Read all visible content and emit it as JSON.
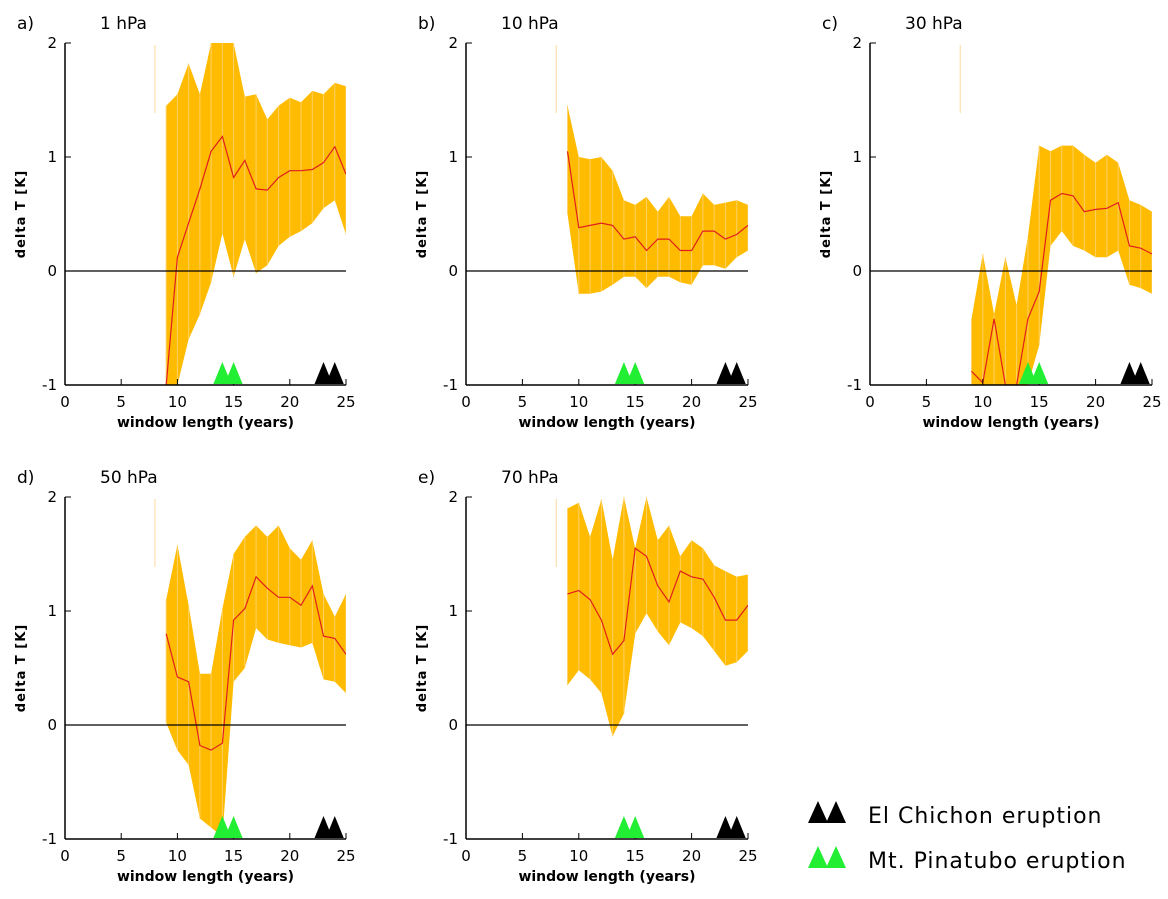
{
  "colors": {
    "band": "#ffbb00",
    "band_stripe": "#ffd166",
    "line": "#e01e1e",
    "zero": "#000000",
    "el_chichon": "#000000",
    "pinatubo": "#22ee33",
    "faint": "#ffd9a0"
  },
  "legend": {
    "el_chichon_label": "El Chichon eruption",
    "pinatubo_label": "Mt. Pinatubo eruption"
  },
  "chart_data": [
    {
      "type": "area",
      "panel": "a)",
      "title": "1 hPa",
      "xlabel": "window length (years)",
      "ylabel": "delta T [K]",
      "xlim": [
        0,
        25
      ],
      "ylim": [
        -1,
        2
      ],
      "xticks": [
        "0",
        "5",
        "10",
        "15",
        "20",
        "25"
      ],
      "yticks": [
        "-1",
        "0",
        "1",
        "2"
      ],
      "x": [
        9,
        10,
        11,
        12,
        13,
        14,
        15,
        16,
        17,
        18,
        19,
        20,
        21,
        22,
        23,
        24,
        25
      ],
      "mean": [
        -1.0,
        0.12,
        0.42,
        0.72,
        1.05,
        1.18,
        0.82,
        0.97,
        0.72,
        0.71,
        0.82,
        0.88,
        0.88,
        0.89,
        0.95,
        1.09,
        0.85
      ],
      "upper": [
        1.45,
        1.55,
        1.82,
        1.55,
        2.0,
        2.0,
        2.0,
        1.53,
        1.55,
        1.33,
        1.45,
        1.52,
        1.48,
        1.58,
        1.55,
        1.65,
        1.62
      ],
      "lower": [
        -1.0,
        -1.0,
        -0.6,
        -0.38,
        -0.1,
        0.33,
        -0.05,
        0.28,
        -0.02,
        0.05,
        0.22,
        0.3,
        0.35,
        0.42,
        0.55,
        0.62,
        0.32
      ],
      "el_chichon_years": [
        23,
        24
      ],
      "pinatubo_years": [
        14,
        15
      ]
    },
    {
      "type": "area",
      "panel": "b)",
      "title": "10 hPa",
      "xlabel": "window length (years)",
      "ylabel": "delta T [K]",
      "xlim": [
        0,
        25
      ],
      "ylim": [
        -1,
        2
      ],
      "xticks": [
        "0",
        "5",
        "10",
        "15",
        "20",
        "25"
      ],
      "yticks": [
        "-1",
        "0",
        "1",
        "2"
      ],
      "x": [
        9,
        10,
        11,
        12,
        13,
        14,
        15,
        16,
        17,
        18,
        19,
        20,
        21,
        22,
        23,
        24,
        25
      ],
      "mean": [
        1.05,
        0.38,
        0.4,
        0.42,
        0.4,
        0.28,
        0.3,
        0.18,
        0.28,
        0.28,
        0.18,
        0.18,
        0.35,
        0.35,
        0.28,
        0.32,
        0.4
      ],
      "upper": [
        1.45,
        1.0,
        0.98,
        1.0,
        0.88,
        0.62,
        0.58,
        0.65,
        0.52,
        0.65,
        0.48,
        0.48,
        0.68,
        0.58,
        0.6,
        0.62,
        0.58
      ],
      "lower": [
        0.5,
        -0.2,
        -0.2,
        -0.18,
        -0.12,
        -0.05,
        -0.05,
        -0.15,
        -0.05,
        -0.05,
        -0.1,
        -0.12,
        0.05,
        0.05,
        0.02,
        0.12,
        0.18
      ],
      "el_chichon_years": [
        23,
        24
      ],
      "pinatubo_years": [
        14,
        15
      ]
    },
    {
      "type": "area",
      "panel": "c)",
      "title": "30 hPa",
      "xlabel": "window length (years)",
      "ylabel": "delta T [K]",
      "xlim": [
        0,
        25
      ],
      "ylim": [
        -1,
        2
      ],
      "xticks": [
        "0",
        "5",
        "10",
        "15",
        "20",
        "25"
      ],
      "yticks": [
        "-1",
        "0",
        "1",
        "2"
      ],
      "x": [
        9,
        10,
        11,
        12,
        13,
        14,
        15,
        16,
        17,
        18,
        19,
        20,
        21,
        22,
        23,
        24,
        25
      ],
      "mean": [
        -0.88,
        -0.98,
        -0.42,
        -1.0,
        -1.0,
        -0.42,
        -0.18,
        0.62,
        0.68,
        0.66,
        0.52,
        0.54,
        0.55,
        0.6,
        0.22,
        0.2,
        0.15
      ],
      "upper": [
        -0.42,
        0.15,
        -0.38,
        0.12,
        -0.3,
        0.3,
        1.1,
        1.05,
        1.1,
        1.1,
        1.02,
        0.95,
        1.02,
        0.95,
        0.62,
        0.58,
        0.52
      ],
      "lower": [
        -1.0,
        -1.0,
        -1.0,
        -1.0,
        -1.0,
        -1.0,
        -0.65,
        0.22,
        0.35,
        0.22,
        0.18,
        0.12,
        0.12,
        0.18,
        -0.12,
        -0.15,
        -0.2
      ],
      "el_chichon_years": [
        23,
        24
      ],
      "pinatubo_years": [
        14,
        15
      ]
    },
    {
      "type": "area",
      "panel": "d)",
      "title": "50 hPa",
      "xlabel": "window length (years)",
      "ylabel": "delta T [K]",
      "xlim": [
        0,
        25
      ],
      "ylim": [
        -1,
        2
      ],
      "xticks": [
        "0",
        "5",
        "10",
        "15",
        "20",
        "25"
      ],
      "yticks": [
        "-1",
        "0",
        "1",
        "2"
      ],
      "x": [
        9,
        10,
        11,
        12,
        13,
        14,
        15,
        16,
        17,
        18,
        19,
        20,
        21,
        22,
        23,
        24,
        25
      ],
      "mean": [
        0.8,
        0.42,
        0.38,
        -0.18,
        -0.22,
        -0.16,
        0.92,
        1.02,
        1.3,
        1.2,
        1.12,
        1.12,
        1.05,
        1.22,
        0.78,
        0.76,
        0.62
      ],
      "upper": [
        1.1,
        1.58,
        1.05,
        0.45,
        0.45,
        1.02,
        1.5,
        1.65,
        1.75,
        1.65,
        1.75,
        1.55,
        1.45,
        1.62,
        1.15,
        0.95,
        1.15
      ],
      "lower": [
        0.02,
        -0.22,
        -0.35,
        -0.82,
        -0.9,
        -0.98,
        0.38,
        0.5,
        0.85,
        0.75,
        0.72,
        0.7,
        0.68,
        0.72,
        0.4,
        0.38,
        0.28
      ],
      "el_chichon_years": [
        23,
        24
      ],
      "pinatubo_years": [
        14,
        15
      ]
    },
    {
      "type": "area",
      "panel": "e)",
      "title": "70 hPa",
      "xlabel": "window length (years)",
      "ylabel": "delta T [K]",
      "xlim": [
        0,
        25
      ],
      "ylim": [
        -1,
        2
      ],
      "xticks": [
        "0",
        "5",
        "10",
        "15",
        "20",
        "25"
      ],
      "yticks": [
        "-1",
        "0",
        "1",
        "2"
      ],
      "x": [
        9,
        10,
        11,
        12,
        13,
        14,
        15,
        16,
        17,
        18,
        19,
        20,
        21,
        22,
        23,
        24,
        25
      ],
      "mean": [
        1.15,
        1.18,
        1.1,
        0.92,
        0.62,
        0.74,
        1.55,
        1.48,
        1.22,
        1.08,
        1.35,
        1.3,
        1.28,
        1.12,
        0.92,
        0.92,
        1.05
      ],
      "upper": [
        1.9,
        1.95,
        1.65,
        1.98,
        1.45,
        2.0,
        1.55,
        2.0,
        1.62,
        1.75,
        1.48,
        1.62,
        1.55,
        1.4,
        1.35,
        1.3,
        1.32
      ],
      "lower": [
        0.35,
        0.48,
        0.4,
        0.28,
        -0.1,
        0.1,
        0.8,
        0.98,
        0.82,
        0.7,
        0.9,
        0.85,
        0.78,
        0.65,
        0.52,
        0.55,
        0.65
      ],
      "el_chichon_years": [
        23,
        24
      ],
      "pinatubo_years": [
        14,
        15
      ]
    }
  ]
}
